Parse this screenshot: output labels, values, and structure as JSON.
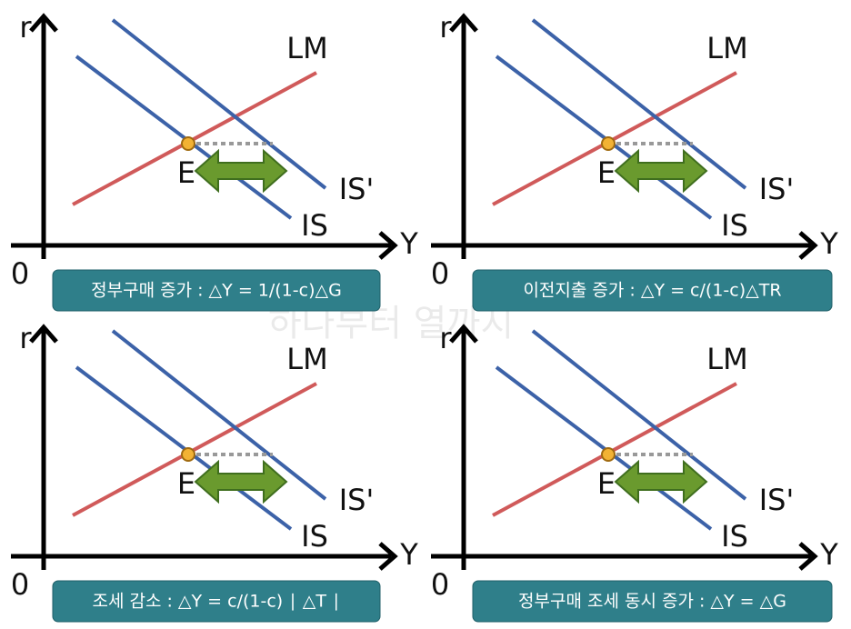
{
  "watermark": "하나부터 열까지",
  "panels": [
    {
      "y_axis": "r",
      "x_axis": "Y",
      "origin": "0",
      "lm": "LM",
      "is": "IS",
      "is_shifted": "IS'",
      "equilibrium": "E",
      "caption": "정부구매 증가 : △Y = 1/(1-c)△G"
    },
    {
      "y_axis": "r",
      "x_axis": "Y",
      "origin": "0",
      "lm": "LM",
      "is": "IS",
      "is_shifted": "IS'",
      "equilibrium": "E",
      "caption": "이전지출 증가 : △Y = c/(1-c)△TR"
    },
    {
      "y_axis": "r",
      "x_axis": "Y",
      "origin": "0",
      "lm": "LM",
      "is": "IS",
      "is_shifted": "IS'",
      "equilibrium": "E",
      "caption": "조세 감소 : △Y = c/(1-c) ∣ △T ∣"
    },
    {
      "y_axis": "r",
      "x_axis": "Y",
      "origin": "0",
      "lm": "LM",
      "is": "IS",
      "is_shifted": "IS'",
      "equilibrium": "E",
      "caption": "정부구매 조세 동시 증가 : △Y = △G"
    }
  ]
}
